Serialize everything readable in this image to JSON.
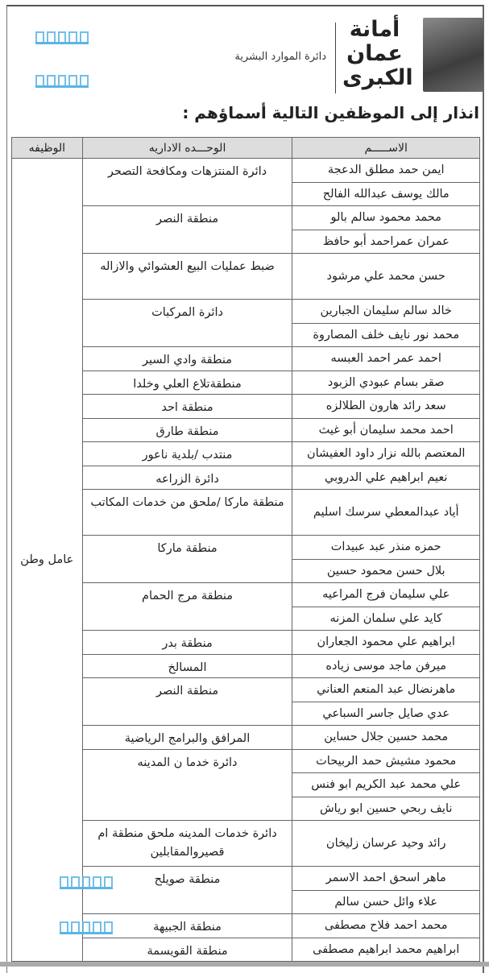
{
  "header": {
    "logo_text": [
      "أمانة",
      "عمان",
      "الكبرى"
    ],
    "department": "دائرة الموارد البشرية",
    "title": "انذار إلى الموظفين التالية أسماؤهم :"
  },
  "table": {
    "columns": {
      "name": "الاســـــم",
      "unit": "الوحـــده الاداريه",
      "job": "الوظيفه"
    },
    "job": "عامل وطن",
    "groups": [
      {
        "unit": "دائرة المنتزهات ومكافحة التصحر",
        "names": [
          "ايمن حمد مطلق الدعجة",
          "مالك يوسف عبدالله الفالح"
        ]
      },
      {
        "unit": "منطقة النصر",
        "names": [
          "محمد محمود سالم بالو",
          "عمران عمراحمد  أبو حافظ"
        ]
      },
      {
        "unit": "ضبط عمليات البيع العشوائي والازاله",
        "names": [
          "حسن محمد علي مرشود"
        ],
        "tall": true
      },
      {
        "unit": "دائرة المركبات",
        "names": [
          "خالد سالم سليمان الجبارين",
          "محمد نور نايف خلف  المصاروة"
        ]
      },
      {
        "unit": "منطقة وادي السير",
        "names": [
          "احمد  عمر احمد العبسه"
        ]
      },
      {
        "unit": "منطقةتلاع العلي وخلدا",
        "names": [
          "صقر بسام عبودي الزبود"
        ]
      },
      {
        "unit": "منطقة احد",
        "names": [
          "سعد رائد هارون الطلالزه"
        ]
      },
      {
        "unit": "منطقة طارق",
        "names": [
          "احمد محمد سليمان أبو غيث"
        ]
      },
      {
        "unit": "منتدب /بلدية ناعور",
        "names": [
          "المعتصم بالله نزار داود العفيشان"
        ]
      },
      {
        "unit": "دائرة الزراعه",
        "names": [
          "نعيم ابراهيم علي الدروبي"
        ]
      },
      {
        "unit": "منطقة ماركا /ملحق من خدمات المكاتب",
        "names": [
          "أياد عبدالمعطي سرسك اسليم"
        ],
        "tall": true
      },
      {
        "unit": "منطقة ماركا",
        "names": [
          "حمزه منذر عبد عبيدات",
          "بلال حسن محمود حسين"
        ]
      },
      {
        "unit": "منطقة مرج الحمام",
        "names": [
          "علي سليمان فرج المراعيه",
          "كايد علي سلمان المزنه"
        ]
      },
      {
        "unit": "منطقة بدر",
        "names": [
          "ابراهيم علي محمود الجعاران"
        ]
      },
      {
        "unit": "المسالخ",
        "names": [
          "ميرفن ماجد موسى زياده"
        ]
      },
      {
        "unit": "منطقة النصر",
        "names": [
          "ماهرنضال عبد المنعم العناني",
          "عدي صايل جاسر السباعي"
        ]
      },
      {
        "unit": "المرافق والبرامج الرياضية",
        "names": [
          "محمد حسين جلال حساين"
        ]
      },
      {
        "unit": "دائرة خدما ن المدينه",
        "names": [
          "محمود مشيش حمد الربيحات",
          "علي محمد عبد الكريم ابو فنس",
          "نايف ربحي حسين ابو رياش"
        ]
      },
      {
        "unit": "دائرة خدمات المدينه ملحق منطقة ام قصيروالمقابلين",
        "names": [
          "رائد وحيد عرسان زليخان"
        ],
        "tall": true
      },
      {
        "unit": "منطقة صويلح",
        "names": [
          "ماهر اسحق احمد الاسمر",
          "علاء وائل حسن سالم"
        ]
      },
      {
        "unit": "منطقة الجبيهة",
        "names": [
          "محمد احمد فلاح مصطفى"
        ]
      },
      {
        "unit": "منطقة القويسمة",
        "names": [
          "ابراهيم محمد ابراهيم مصطفى"
        ]
      }
    ]
  },
  "colors": {
    "watermark": "#5ab4e6",
    "header_bg": "#dddddd"
  }
}
